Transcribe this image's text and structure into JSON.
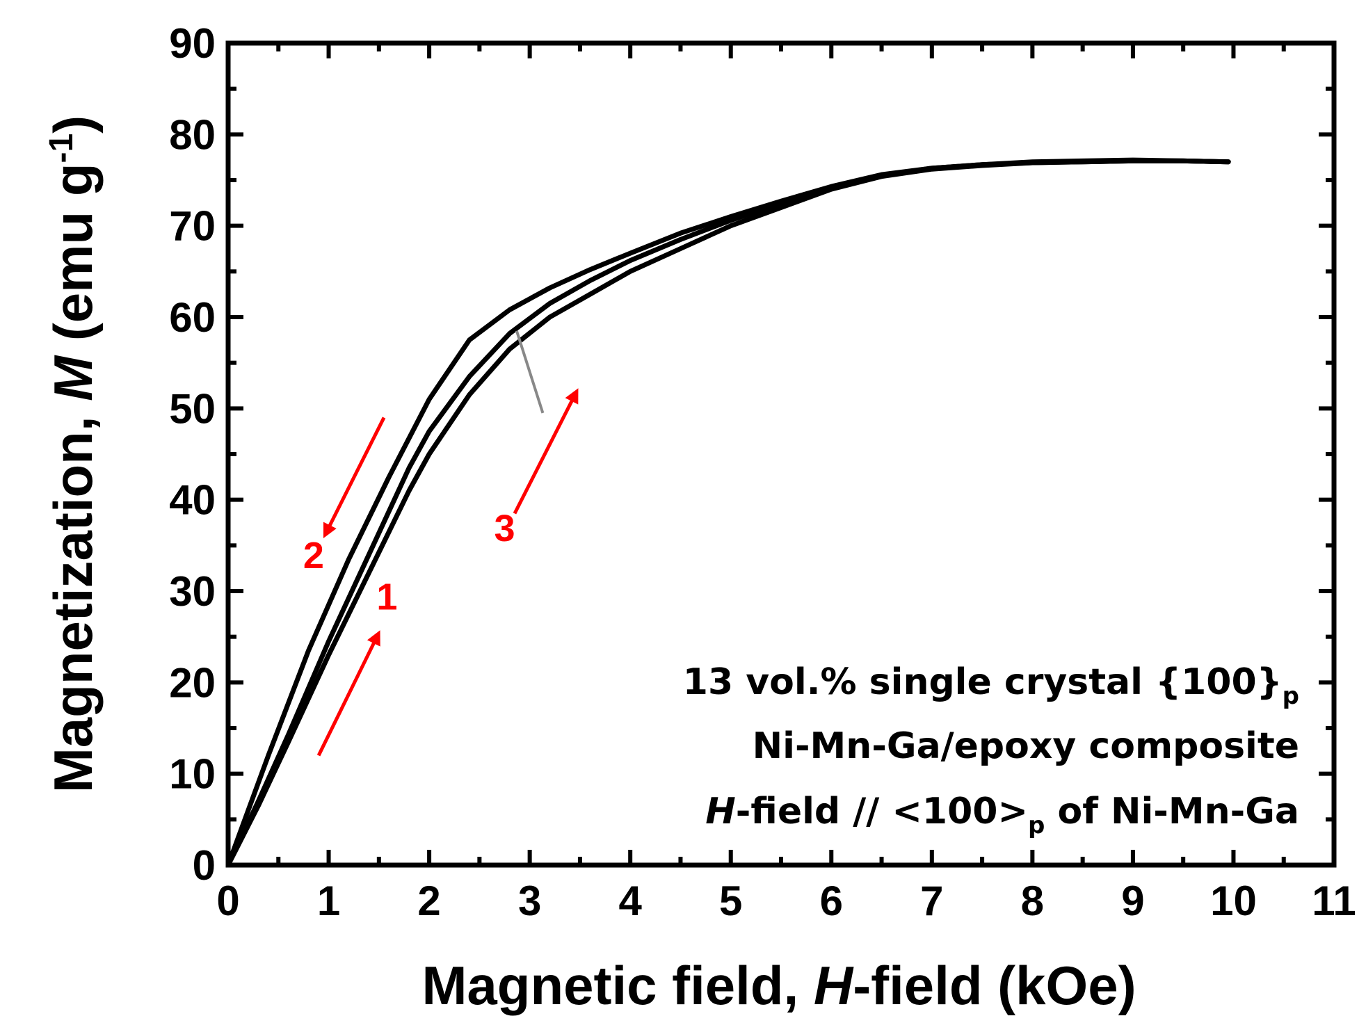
{
  "chart_data": {
    "type": "line",
    "title": "",
    "xlabel": {
      "prefix": "Magnetic field, ",
      "italic": "H",
      "suffix": "-field (kOe)"
    },
    "ylabel": {
      "prefix": "Magnetization, ",
      "italic": "M",
      "suffix": " (emu g",
      "sup": "-1",
      "close": ")"
    },
    "xlim": [
      0,
      11
    ],
    "ylim": [
      0,
      90
    ],
    "xticks": [
      "0",
      "1",
      "2",
      "3",
      "4",
      "5",
      "6",
      "7",
      "8",
      "9",
      "10",
      "11"
    ],
    "yticks": [
      "0",
      "10",
      "20",
      "30",
      "40",
      "50",
      "60",
      "70",
      "80",
      "90"
    ],
    "grid": false,
    "series": [
      {
        "name": "1",
        "x": [
          0,
          0.3,
          0.6,
          1.0,
          1.4,
          1.8,
          2.0,
          2.4,
          2.8,
          3.2,
          3.6,
          4.0,
          4.5,
          5.0,
          5.5,
          6.0,
          6.5,
          7.0,
          7.5,
          8.0,
          8.5,
          9.0,
          9.5,
          9.95
        ],
        "y": [
          0,
          6.5,
          13.5,
          23,
          32,
          41,
          45,
          51.5,
          56.5,
          60,
          62.5,
          65,
          67.5,
          70,
          72,
          74,
          75.4,
          76.2,
          76.6,
          76.9,
          77.0,
          77.1,
          77.1,
          77.0
        ]
      },
      {
        "name": "2",
        "x": [
          9.95,
          9.5,
          9.0,
          8.5,
          8.0,
          7.5,
          7.0,
          6.5,
          6.0,
          5.5,
          5.0,
          4.5,
          4.0,
          3.6,
          3.2,
          2.8,
          2.4,
          2.0,
          1.6,
          1.2,
          0.8,
          0.4,
          0
        ],
        "y": [
          77.0,
          77.1,
          77.2,
          77.1,
          77.0,
          76.7,
          76.3,
          75.6,
          74.3,
          72.7,
          71.0,
          69.2,
          67.0,
          65.2,
          63.2,
          60.8,
          57.5,
          51.0,
          42.5,
          33.5,
          23.5,
          12.0,
          0
        ]
      },
      {
        "name": "3",
        "x": [
          0,
          0.3,
          0.6,
          1.0,
          1.4,
          1.8,
          2.0,
          2.4,
          2.8,
          3.2,
          3.6,
          4.0,
          4.5,
          5.0,
          5.5,
          6.0,
          6.5,
          7.0,
          7.5,
          8.0,
          8.5,
          9.0,
          9.5,
          9.95
        ],
        "y": [
          0,
          7.0,
          14.3,
          24.5,
          34,
          43.5,
          47.5,
          53.5,
          58.2,
          61.5,
          64.0,
          66.2,
          68.5,
          70.6,
          72.4,
          74.1,
          75.5,
          76.3,
          76.7,
          76.9,
          77.0,
          77.1,
          77.1,
          77.0
        ]
      }
    ],
    "annotations": [
      {
        "label": "1",
        "color": "#ff0000",
        "arrow_from": [
          0.9,
          12
        ],
        "arrow_to": [
          1.48,
          25
        ],
        "label_at": [
          1.58,
          28
        ]
      },
      {
        "label": "2",
        "color": "#ff0000",
        "arrow_from": [
          1.55,
          49
        ],
        "arrow_to": [
          0.98,
          36.5
        ],
        "label_at": [
          0.85,
          32.5
        ]
      },
      {
        "label": "3",
        "color": "#ff0000",
        "arrow_from": [
          2.85,
          38.5
        ],
        "arrow_to": [
          3.45,
          51.5
        ],
        "label_at": [
          2.75,
          35.5
        ]
      }
    ],
    "pointer_line": {
      "color": "#888888",
      "from": [
        3.13,
        49.5
      ],
      "to": [
        2.87,
        58.5
      ]
    },
    "legend_text": {
      "line1": {
        "text": "13 vol.% single crystal {100}",
        "sub": "p"
      },
      "line2": {
        "text": "Ni-Mn-Ga/epoxy composite"
      },
      "line3": {
        "italic": "H",
        "text": "-field // <100>",
        "sub": "p",
        "tail": " of Ni-Mn-Ga"
      }
    }
  }
}
